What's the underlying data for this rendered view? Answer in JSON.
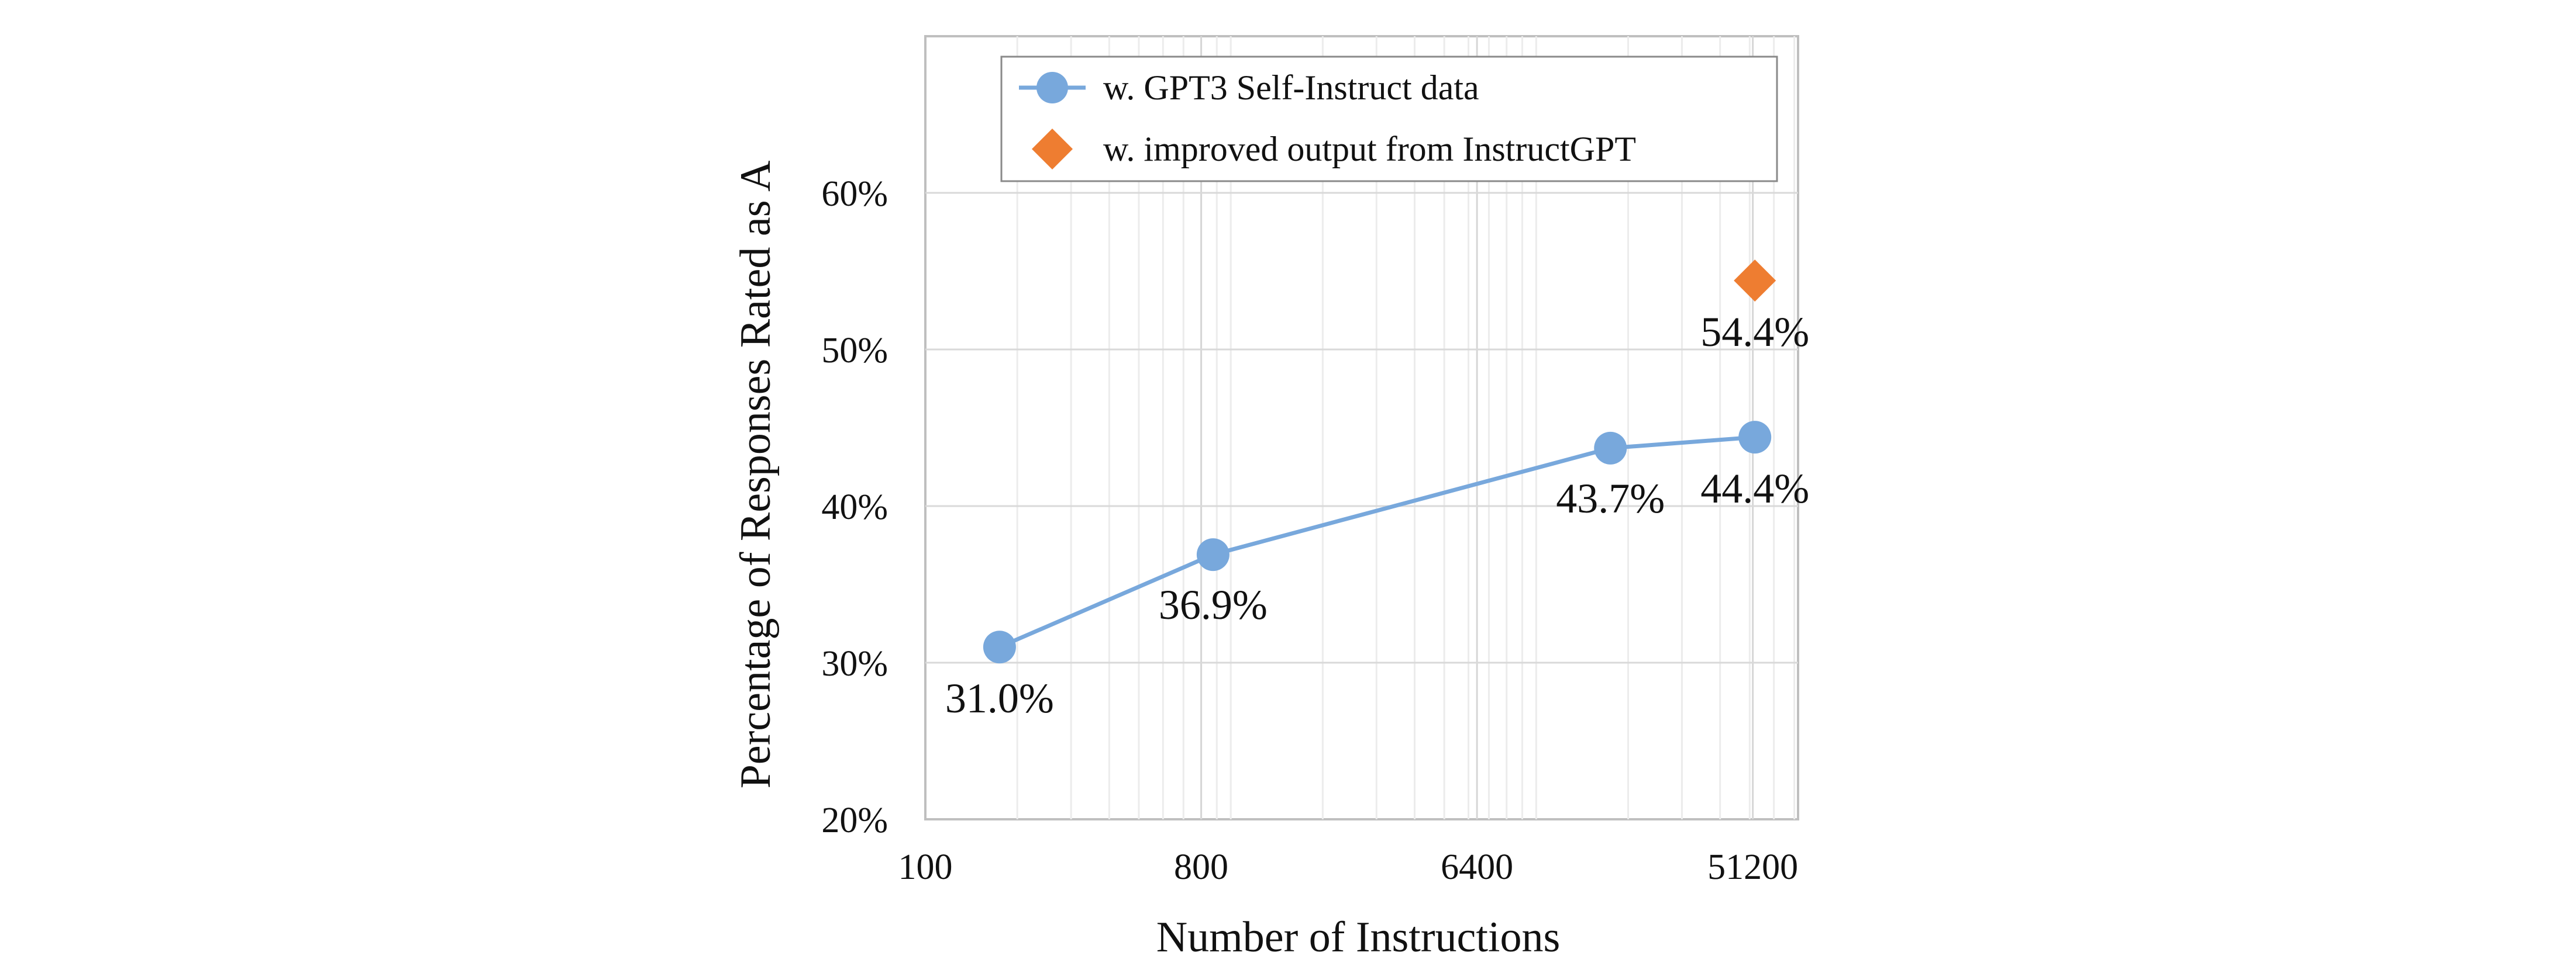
{
  "chart_data": {
    "type": "line",
    "title": "",
    "xlabel": "Number of Instructions",
    "ylabel": "Percentage of Responses Rated as A",
    "xscale": "log2",
    "xlim": [
      100,
      72000
    ],
    "ylim": [
      20,
      70
    ],
    "x_ticks": [
      100,
      800,
      6400,
      51200
    ],
    "x_tick_labels": [
      "100",
      "800",
      "6400",
      "51200"
    ],
    "y_ticks": [
      20,
      30,
      40,
      50,
      60
    ],
    "y_tick_labels": [
      "20%",
      "30%",
      "40%",
      "50%",
      "60%"
    ],
    "grid": true,
    "legend_position": "top",
    "series": [
      {
        "name": "w. GPT3 Self-Instruct data",
        "marker": "circle",
        "color": "#78A8DC",
        "line": true,
        "x": [
          175,
          875,
          17500,
          52000
        ],
        "values": [
          31.0,
          36.9,
          43.7,
          44.4
        ],
        "labels": [
          "31.0%",
          "36.9%",
          "43.7%",
          "44.4%"
        ]
      },
      {
        "name": "w. improved output from InstructGPT",
        "marker": "diamond",
        "color": "#EE7D31",
        "line": false,
        "x": [
          52000
        ],
        "values": [
          54.4
        ],
        "labels": [
          "54.4%"
        ]
      }
    ]
  }
}
